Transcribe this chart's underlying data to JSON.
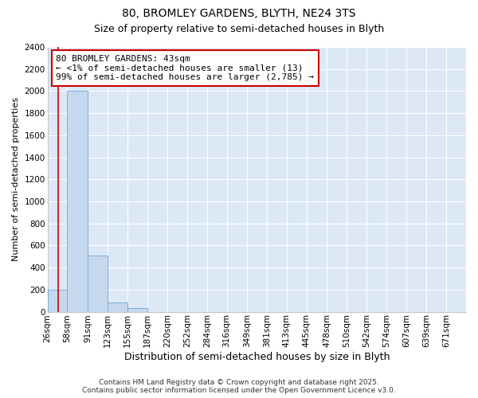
{
  "title": "80, BROMLEY GARDENS, BLYTH, NE24 3TS",
  "subtitle": "Size of property relative to semi-detached houses in Blyth",
  "xlabel": "Distribution of semi-detached houses by size in Blyth",
  "ylabel": "Number of semi-detached properties",
  "bar_values": [
    200,
    2000,
    510,
    85,
    35,
    0,
    0,
    0,
    0,
    0,
    0,
    0,
    0,
    0,
    0,
    0,
    0,
    0,
    0,
    0,
    0
  ],
  "bin_labels": [
    "26sqm",
    "58sqm",
    "91sqm",
    "123sqm",
    "155sqm",
    "187sqm",
    "220sqm",
    "252sqm",
    "284sqm",
    "316sqm",
    "349sqm",
    "381sqm",
    "413sqm",
    "445sqm",
    "478sqm",
    "510sqm",
    "542sqm",
    "574sqm",
    "607sqm",
    "639sqm",
    "671sqm"
  ],
  "bin_edges": [
    26,
    58,
    91,
    123,
    155,
    187,
    220,
    252,
    284,
    316,
    349,
    381,
    413,
    445,
    478,
    510,
    542,
    574,
    607,
    639,
    671,
    703
  ],
  "bar_color": "#c5d8ed",
  "bar_edge_color": "#7aafe0",
  "ylim": [
    0,
    2400
  ],
  "yticks": [
    0,
    200,
    400,
    600,
    800,
    1000,
    1200,
    1400,
    1600,
    1800,
    2000,
    2200,
    2400
  ],
  "red_line_x": 43,
  "annotation_title": "80 BROMLEY GARDENS: 43sqm",
  "annotation_line1": "← <1% of semi-detached houses are smaller (13)",
  "annotation_line2": "99% of semi-detached houses are larger (2,785) →",
  "annotation_box_facecolor": "#ffffff",
  "annotation_box_edgecolor": "#cc0000",
  "red_line_color": "#cc0000",
  "fig_facecolor": "#ffffff",
  "plot_facecolor": "#dce8f5",
  "grid_color": "#ffffff",
  "footer_line1": "Contains HM Land Registry data © Crown copyright and database right 2025.",
  "footer_line2": "Contains public sector information licensed under the Open Government Licence v3.0.",
  "title_fontsize": 10,
  "subtitle_fontsize": 9,
  "xlabel_fontsize": 9,
  "ylabel_fontsize": 8,
  "tick_fontsize": 7.5,
  "annotation_fontsize": 8,
  "footer_fontsize": 6.5
}
